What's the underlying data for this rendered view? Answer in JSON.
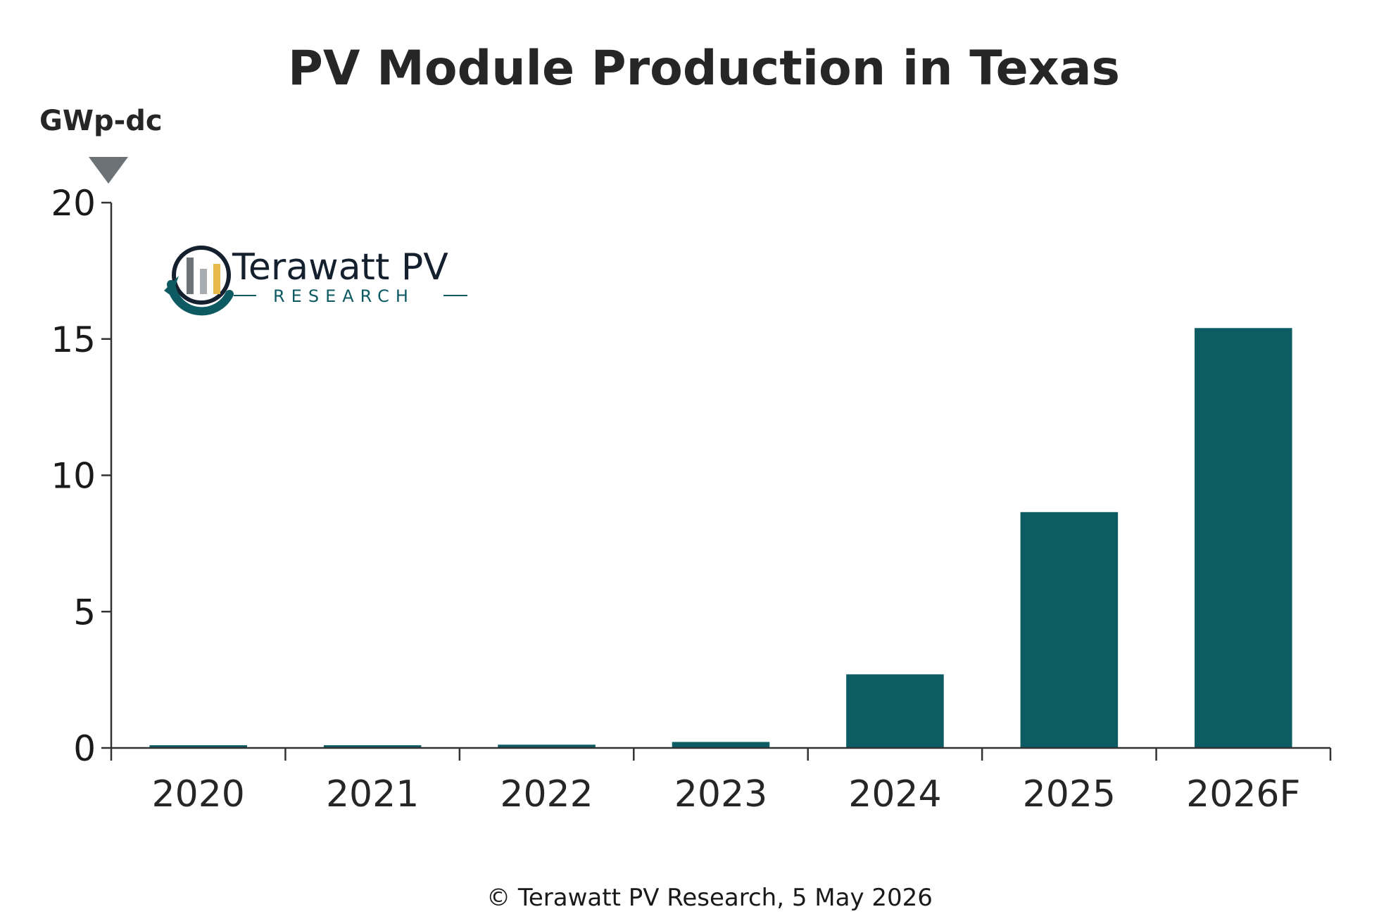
{
  "chart_data": {
    "type": "bar",
    "title": "PV Module Production in Texas",
    "ylabel": "GWp-dc",
    "categories": [
      "2020",
      "2021",
      "2022",
      "2023",
      "2024",
      "2025",
      "2026F"
    ],
    "values": [
      0.1,
      0.1,
      0.12,
      0.22,
      2.7,
      8.65,
      15.4
    ],
    "ylim": [
      0,
      20
    ],
    "yticks": [
      0,
      5,
      10,
      15,
      20
    ],
    "ytick_labels": [
      "0",
      "5",
      "10",
      "15",
      "20"
    ],
    "grid": false,
    "bar_color": "#0d5b63",
    "footer": "© Terawatt PV Research, 5 May 2026"
  },
  "logo": {
    "name": "Terawatt PV",
    "subtitle": "RESEARCH",
    "colors": {
      "ring": "#0d5a63",
      "bar_gray": "#6d7478",
      "bar_light": "#a7adb1",
      "bar_gold": "#e6b94a"
    }
  },
  "colors": {
    "axis": "#333333",
    "marker": "#6b7377"
  }
}
